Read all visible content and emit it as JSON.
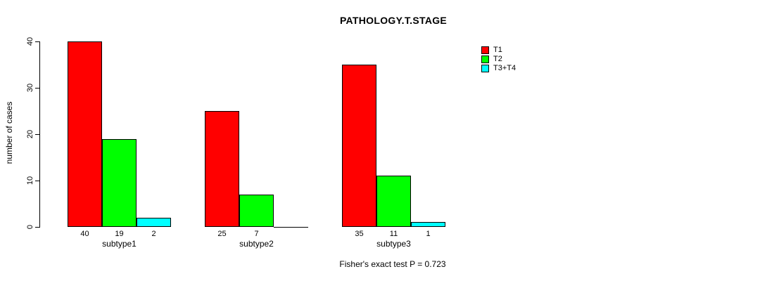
{
  "chart_data": {
    "type": "bar",
    "title": "PATHOLOGY.T.STAGE",
    "ylabel": "number of cases",
    "xlabel": "",
    "ylim": [
      0,
      40
    ],
    "yticks": [
      "0",
      "10",
      "20",
      "30",
      "40"
    ],
    "categories": [
      "subtype1",
      "subtype2",
      "subtype3"
    ],
    "series": [
      {
        "name": "T1",
        "color": "#ff0000",
        "values": [
          40,
          25,
          35
        ],
        "value_labels": [
          "40",
          "25",
          "35"
        ]
      },
      {
        "name": "T2",
        "color": "#00ff00",
        "values": [
          19,
          7,
          11
        ],
        "value_labels": [
          "19",
          "7",
          "11"
        ]
      },
      {
        "name": "T3+T4",
        "color": "#00ffff",
        "values": [
          2,
          0,
          1
        ],
        "value_labels": [
          "2",
          "",
          "1"
        ]
      }
    ],
    "legend_position": "top-right",
    "grid": false,
    "annotation": "Fisher's exact test P = 0.723"
  }
}
